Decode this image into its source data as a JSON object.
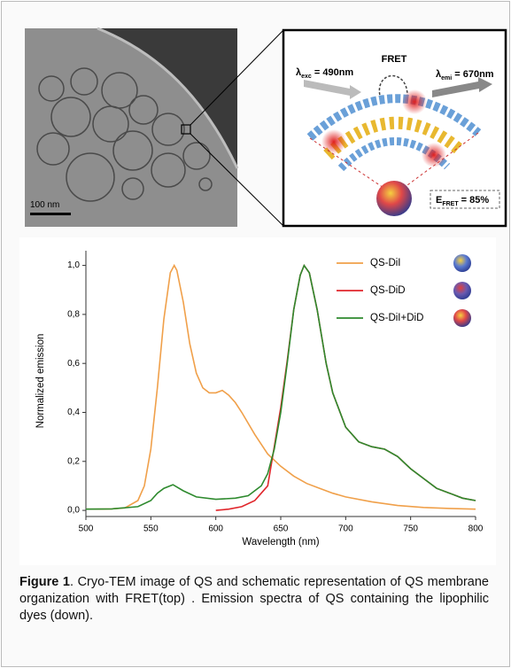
{
  "tem_image": {
    "scale_bar": "100 nm"
  },
  "schematic": {
    "fret": "FRET",
    "excitation": {
      "symbol": "λ",
      "sub": "exc",
      "text": " = 490nm"
    },
    "emission": {
      "symbol": "λ",
      "sub": "emi",
      "text": " = 670nm"
    },
    "efficiency": {
      "symbol": "E",
      "sub": "FRET",
      "text": " = 85%"
    }
  },
  "chart_data": {
    "type": "line",
    "xlabel": "Wavelength (nm)",
    "ylabel": "Normalized emission",
    "xlim": [
      500,
      800
    ],
    "ylim": [
      -0.025,
      1.06
    ],
    "xticks": [
      500,
      550,
      600,
      650,
      700,
      750,
      800
    ],
    "yticks": [
      {
        "value": 0,
        "label": "0,0"
      },
      {
        "value": 0.2,
        "label": "0,2"
      },
      {
        "value": 0.4,
        "label": "0,4"
      },
      {
        "value": 0.6,
        "label": "0,6"
      },
      {
        "value": 0.8,
        "label": "0,8"
      },
      {
        "value": 1.0,
        "label": "1,0"
      }
    ],
    "legend": "upper right",
    "series": [
      {
        "name": "QS-DiI",
        "color": "#f0a04a",
        "x": [
          500,
          510,
          520,
          530,
          540,
          545,
          550,
          555,
          560,
          565,
          568,
          570,
          575,
          580,
          585,
          590,
          595,
          600,
          605,
          610,
          615,
          620,
          630,
          640,
          650,
          660,
          670,
          680,
          690,
          700,
          720,
          740,
          760,
          780,
          800
        ],
        "values": [
          0.005,
          0.005,
          0.006,
          0.01,
          0.04,
          0.1,
          0.25,
          0.5,
          0.78,
          0.97,
          1.0,
          0.98,
          0.85,
          0.68,
          0.56,
          0.5,
          0.48,
          0.48,
          0.49,
          0.47,
          0.44,
          0.4,
          0.31,
          0.23,
          0.18,
          0.14,
          0.11,
          0.09,
          0.07,
          0.055,
          0.035,
          0.02,
          0.012,
          0.008,
          0.005
        ]
      },
      {
        "name": "QS-DiD",
        "color": "#e0262b",
        "x": [
          600,
          610,
          620,
          630,
          635,
          640,
          645,
          650,
          655,
          660,
          665,
          668,
          672,
          678,
          685,
          690,
          700,
          710,
          720,
          730,
          740,
          750,
          760,
          770,
          780,
          790,
          800
        ],
        "values": [
          0.0,
          0.005,
          0.015,
          0.04,
          0.07,
          0.1,
          0.26,
          0.42,
          0.61,
          0.82,
          0.96,
          1.0,
          0.97,
          0.82,
          0.6,
          0.48,
          0.34,
          0.28,
          0.26,
          0.25,
          0.22,
          0.17,
          0.13,
          0.09,
          0.07,
          0.05,
          0.04
        ]
      },
      {
        "name": "QS-DiI+DiD",
        "color": "#2e8a2e",
        "x": [
          500,
          520,
          540,
          550,
          555,
          560,
          567,
          575,
          585,
          600,
          615,
          625,
          635,
          640,
          645,
          650,
          655,
          660,
          665,
          668,
          672,
          678,
          685,
          690,
          700,
          710,
          720,
          730,
          740,
          750,
          760,
          770,
          780,
          790,
          800
        ],
        "values": [
          0.005,
          0.006,
          0.015,
          0.04,
          0.07,
          0.09,
          0.105,
          0.08,
          0.055,
          0.045,
          0.05,
          0.06,
          0.1,
          0.15,
          0.25,
          0.4,
          0.6,
          0.82,
          0.96,
          1.0,
          0.97,
          0.82,
          0.6,
          0.48,
          0.34,
          0.28,
          0.26,
          0.25,
          0.22,
          0.17,
          0.13,
          0.09,
          0.07,
          0.05,
          0.04
        ]
      }
    ]
  },
  "caption": {
    "label": "Figure 1",
    "text": ". Cryo-TEM image of QS and schematic representation of QS membrane organization with FRET(top) . Emission spectra of QS containing the lipophilic dyes (down)."
  }
}
